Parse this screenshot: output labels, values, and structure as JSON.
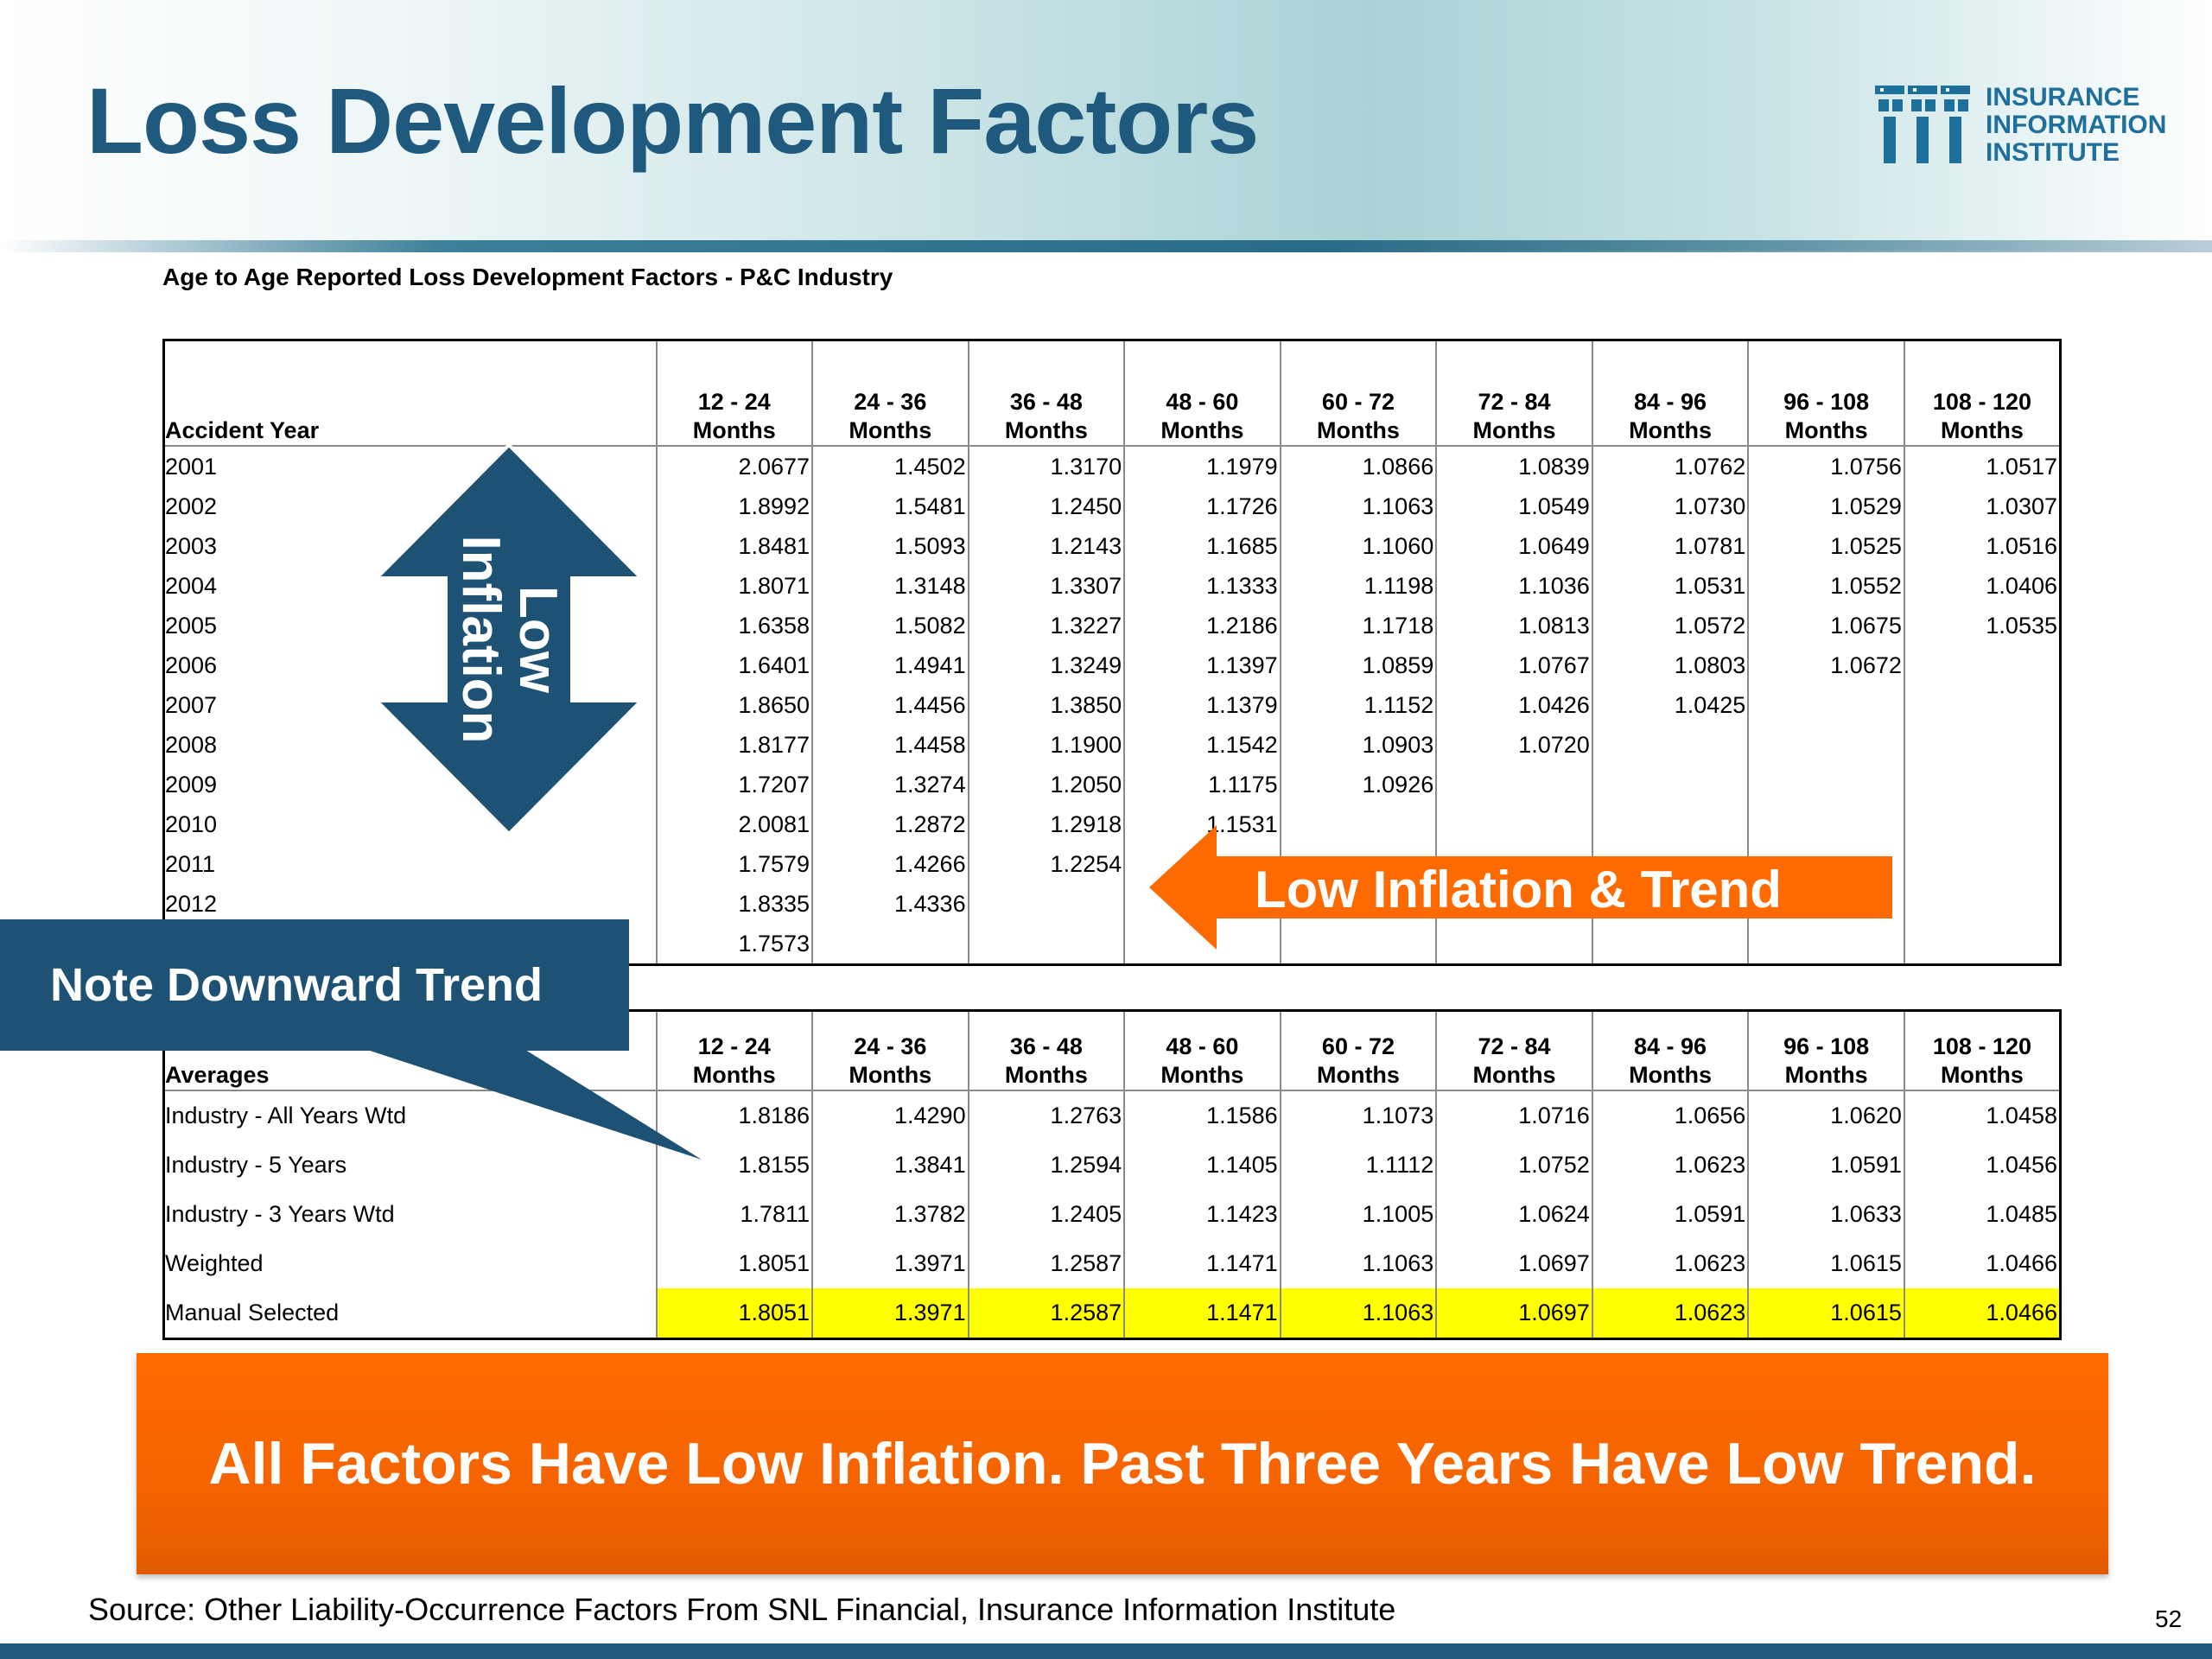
{
  "slide": {
    "title": "Loss Development Factors",
    "page_number": "52",
    "source": "Source: Other Liability-Occurrence Factors From SNL Financial, Insurance Information Institute"
  },
  "logo": {
    "line1": "INSURANCE",
    "line2": "INFORMATION",
    "line3": "INSTITUTE"
  },
  "subtitle": "Age to Age Reported Loss Development Factors -  P&C Industry",
  "period_headers": [
    {
      "top": "12 - 24",
      "bottom": "Months"
    },
    {
      "top": "24 - 36",
      "bottom": "Months"
    },
    {
      "top": "36 - 48",
      "bottom": "Months"
    },
    {
      "top": "48 - 60",
      "bottom": "Months"
    },
    {
      "top": "60 - 72",
      "bottom": "Months"
    },
    {
      "top": "72 - 84",
      "bottom": "Months"
    },
    {
      "top": "84 - 96",
      "bottom": "Months"
    },
    {
      "top": "96 - 108",
      "bottom": "Months"
    },
    {
      "top": "108 - 120",
      "bottom": "Months"
    }
  ],
  "main_table": {
    "label_header": "Accident Year",
    "rows": [
      {
        "label": "2001",
        "values": [
          "2.0677",
          "1.4502",
          "1.3170",
          "1.1979",
          "1.0866",
          "1.0839",
          "1.0762",
          "1.0756",
          "1.0517"
        ]
      },
      {
        "label": "2002",
        "values": [
          "1.8992",
          "1.5481",
          "1.2450",
          "1.1726",
          "1.1063",
          "1.0549",
          "1.0730",
          "1.0529",
          "1.0307"
        ]
      },
      {
        "label": "2003",
        "values": [
          "1.8481",
          "1.5093",
          "1.2143",
          "1.1685",
          "1.1060",
          "1.0649",
          "1.0781",
          "1.0525",
          "1.0516"
        ]
      },
      {
        "label": "2004",
        "values": [
          "1.8071",
          "1.3148",
          "1.3307",
          "1.1333",
          "1.1198",
          "1.1036",
          "1.0531",
          "1.0552",
          "1.0406"
        ]
      },
      {
        "label": "2005",
        "values": [
          "1.6358",
          "1.5082",
          "1.3227",
          "1.2186",
          "1.1718",
          "1.0813",
          "1.0572",
          "1.0675",
          "1.0535"
        ]
      },
      {
        "label": "2006",
        "values": [
          "1.6401",
          "1.4941",
          "1.3249",
          "1.1397",
          "1.0859",
          "1.0767",
          "1.0803",
          "1.0672",
          ""
        ]
      },
      {
        "label": "2007",
        "values": [
          "1.8650",
          "1.4456",
          "1.3850",
          "1.1379",
          "1.1152",
          "1.0426",
          "1.0425",
          "",
          ""
        ]
      },
      {
        "label": "2008",
        "values": [
          "1.8177",
          "1.4458",
          "1.1900",
          "1.1542",
          "1.0903",
          "1.0720",
          "",
          "",
          ""
        ]
      },
      {
        "label": "2009",
        "values": [
          "1.7207",
          "1.3274",
          "1.2050",
          "1.1175",
          "1.0926",
          "",
          "",
          "",
          ""
        ]
      },
      {
        "label": "2010",
        "values": [
          "2.0081",
          "1.2872",
          "1.2918",
          "1.1531",
          "",
          "",
          "",
          "",
          ""
        ]
      },
      {
        "label": "2011",
        "values": [
          "1.7579",
          "1.4266",
          "1.2254",
          "",
          "",
          "",
          "",
          "",
          ""
        ]
      },
      {
        "label": "2012",
        "values": [
          "1.8335",
          "1.4336",
          "",
          "",
          "",
          "",
          "",
          "",
          ""
        ]
      },
      {
        "label": "",
        "values": [
          "1.7573",
          "",
          "",
          "",
          "",
          "",
          "",
          "",
          ""
        ]
      }
    ]
  },
  "averages_table": {
    "label_header": "Averages",
    "rows": [
      {
        "label": "Industry - All Years Wtd",
        "values": [
          "1.8186",
          "1.4290",
          "1.2763",
          "1.1586",
          "1.1073",
          "1.0716",
          "1.0656",
          "1.0620",
          "1.0458"
        ]
      },
      {
        "label": "Industry - 5 Years",
        "values": [
          "1.8155",
          "1.3841",
          "1.2594",
          "1.1405",
          "1.1112",
          "1.0752",
          "1.0623",
          "1.0591",
          "1.0456"
        ]
      },
      {
        "label": "Industry - 3 Years Wtd",
        "values": [
          "1.7811",
          "1.3782",
          "1.2405",
          "1.1423",
          "1.1005",
          "1.0624",
          "1.0591",
          "1.0633",
          "1.0485"
        ]
      },
      {
        "label": "Weighted",
        "values": [
          "1.8051",
          "1.3971",
          "1.2587",
          "1.1471",
          "1.1063",
          "1.0697",
          "1.0623",
          "1.0615",
          "1.0466"
        ]
      },
      {
        "label": "Manual Selected",
        "values": [
          "1.8051",
          "1.3971",
          "1.2587",
          "1.1471",
          "1.1063",
          "1.0697",
          "1.0623",
          "1.0615",
          "1.0466"
        ],
        "highlight": true
      }
    ]
  },
  "annotations": {
    "updown_line1": "Low",
    "updown_line2": "Inflation",
    "trend_arrow": "Low Inflation & Trend",
    "callout": "Note Downward Trend",
    "banner": "All Factors Have Low Inflation. Past Three Years Have Low Trend."
  },
  "colors": {
    "title": "#1f5a7e",
    "arrow_blue": "#1e5274",
    "arrow_orange": "#ff6a00",
    "highlight": "#ffff00"
  },
  "icons": {
    "logo": "iii-logo-icon",
    "updown": "double-arrow-icon",
    "trend": "left-arrow-icon"
  }
}
